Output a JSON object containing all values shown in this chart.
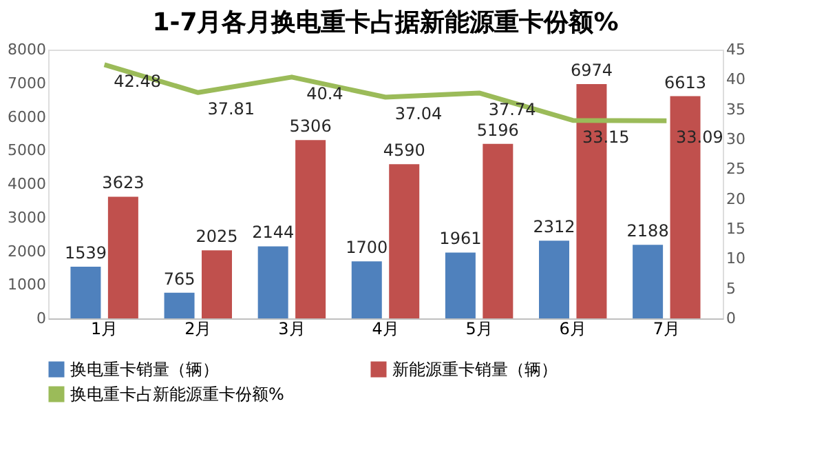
{
  "chart_data": {
    "type": "bar",
    "title": "1-7月各月换电重卡占据新能源重卡份额%",
    "categories": [
      "1月",
      "2月",
      "3月",
      "4月",
      "5月",
      "6月",
      "7月"
    ],
    "series": [
      {
        "name": "换电重卡销量（辆）",
        "color": "#4f81bd",
        "values": [
          1539,
          765,
          2144,
          1700,
          1961,
          2312,
          2188
        ]
      },
      {
        "name": "新能源重卡销量（辆）",
        "color": "#c0504d",
        "values": [
          3623,
          2025,
          5306,
          4590,
          5196,
          6974,
          6613
        ]
      },
      {
        "name": "换电重卡占新能源重卡份额%",
        "color": "#9bbb59",
        "type": "line",
        "axis": "y2",
        "marker": "none",
        "values": [
          42.48,
          37.81,
          40.4,
          37.04,
          37.74,
          33.15,
          33.09
        ]
      }
    ],
    "ylim": [
      0,
      8000
    ],
    "yticks": [
      0,
      1000,
      2000,
      3000,
      4000,
      5000,
      6000,
      7000,
      8000
    ],
    "y2lim": [
      0,
      45
    ],
    "y2ticks": [
      0,
      5,
      10,
      15,
      20,
      25,
      30,
      35,
      40,
      45
    ],
    "data_labels": true,
    "grid": false,
    "legend": "bottom"
  }
}
